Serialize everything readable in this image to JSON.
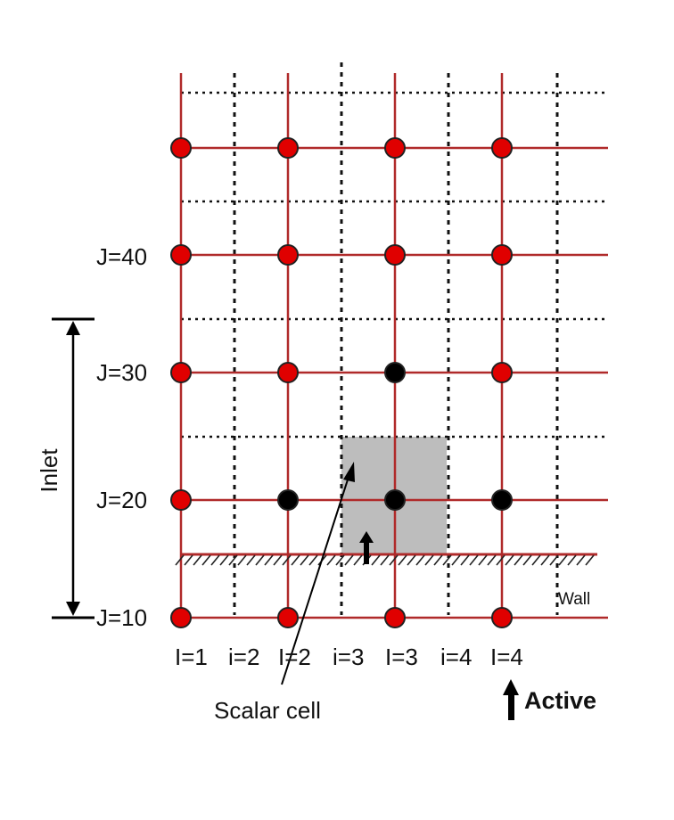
{
  "j_labels": [
    {
      "text": "J=40"
    },
    {
      "text": "J=30"
    },
    {
      "text": "J=20"
    },
    {
      "text": "J=10"
    }
  ],
  "i_labels": [
    {
      "text": "I=1"
    },
    {
      "text": "i=2"
    },
    {
      "text": "I=2"
    },
    {
      "text": "i=3"
    },
    {
      "text": "I=3"
    },
    {
      "text": "i=4"
    },
    {
      "text": "I=4"
    }
  ],
  "inlet_label": "Inlet",
  "wall_label": "Wall",
  "scalar_cell_label": "Scalar cell",
  "active_label": "Active",
  "colors": {
    "grid_line": "#b02a2a",
    "node_red": "#e00000",
    "node_black": "#000000",
    "scalar_cell_fill": "#bdbdbd",
    "dashed_line": "#111111"
  },
  "active_nodes": [
    "I=2,J=20",
    "I=3,J=20",
    "I=4,J=20",
    "I=3,J=30"
  ]
}
